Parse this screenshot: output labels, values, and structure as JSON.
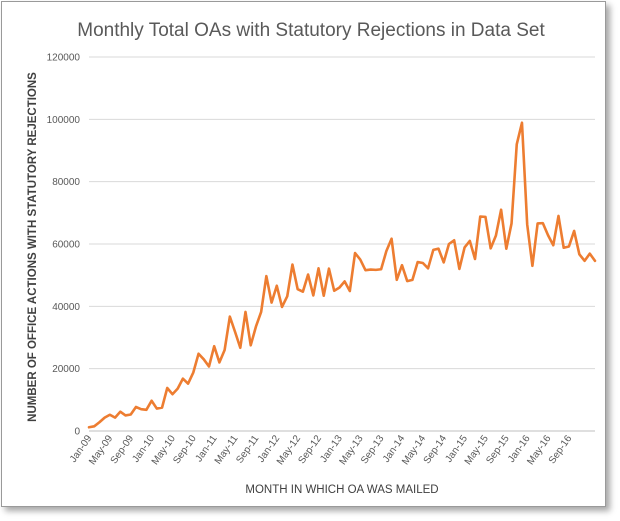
{
  "chart_data": {
    "type": "line",
    "title": "Monthly Total OAs with Statutory Rejections in Data Set",
    "xlabel": "MONTH IN WHICH OA WAS MAILED",
    "ylabel": "NUMBER OF OFFICE ACTIONS WITH STATUTORY REJECTIONS",
    "ylim": [
      0,
      120000
    ],
    "yticks": [
      0,
      20000,
      40000,
      60000,
      80000,
      100000,
      120000
    ],
    "ytick_labels": [
      "0",
      "20000",
      "40000",
      "60000",
      "80000",
      "100000",
      "120000"
    ],
    "xtick_labels": [
      "Jan-09",
      "May-09",
      "Sep-09",
      "Jan-10",
      "May-10",
      "Sep-10",
      "Jan-11",
      "May-11",
      "Sep-11",
      "Jan-12",
      "May-12",
      "Sep-12",
      "Jan-13",
      "May-13",
      "Sep-13",
      "Jan-14",
      "May-14",
      "Sep-14",
      "Jan-15",
      "May-15",
      "Sep-15",
      "Jan-16",
      "May-16",
      "Sep-16"
    ],
    "xtick_step_months": 4,
    "color": "#ed7d31",
    "gridlines": "horizontal",
    "series": [
      {
        "name": "Monthly Total OAs",
        "start": "Jan-09",
        "values": [
          1200,
          1500,
          2800,
          4300,
          5200,
          4300,
          6200,
          5000,
          5300,
          7700,
          7000,
          6800,
          9700,
          7200,
          7500,
          13800,
          11800,
          13600,
          16800,
          15200,
          18800,
          24800,
          23000,
          20700,
          27200,
          22000,
          26000,
          36700,
          31800,
          26700,
          38200,
          27500,
          33500,
          38200,
          49700,
          41200,
          46600,
          39800,
          43200,
          53400,
          45500,
          44700,
          50200,
          43500,
          52200,
          43400,
          52100,
          45000,
          46000,
          48000,
          44900,
          57100,
          55000,
          51600,
          51800,
          51700,
          51900,
          57700,
          61700,
          48500,
          53200,
          48100,
          48500,
          54200,
          53900,
          52200,
          58100,
          58500,
          54100,
          60000,
          61200,
          52000,
          58900,
          61000,
          55200,
          68800,
          68700,
          58600,
          62700,
          71000,
          58500,
          66600,
          92000,
          98900,
          66300,
          53000,
          66600,
          66700,
          62800,
          59600,
          69000,
          58800,
          59200,
          64200,
          56700,
          54600,
          56900,
          54600
        ]
      }
    ]
  }
}
